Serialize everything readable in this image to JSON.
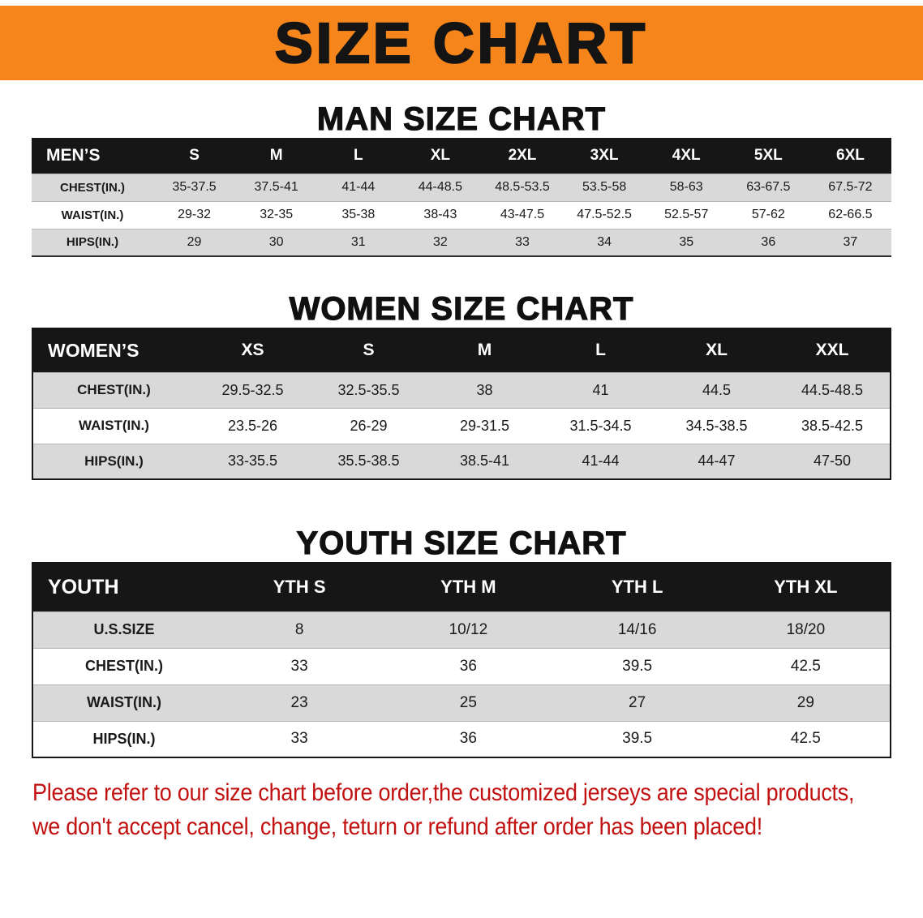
{
  "banner": {
    "title": "SIZE CHART"
  },
  "colors": {
    "banner_bg": "#f6861c",
    "title_text": "#141414",
    "header_row_bg": "#161616",
    "header_row_text": "#ffffff",
    "row_alt_bg": "#d9d9d9",
    "notice_text": "#c21111"
  },
  "sections": {
    "men": {
      "heading": "MAN SIZE CHART",
      "table": {
        "header": [
          "MEN’S",
          "S",
          "M",
          "L",
          "XL",
          "2XL",
          "3XL",
          "4XL",
          "5XL",
          "6XL"
        ],
        "rows": [
          {
            "label": "CHEST(IN.)",
            "values": [
              "35-37.5",
              "37.5-41",
              "41-44",
              "44-48.5",
              "48.5-53.5",
              "53.5-58",
              "58-63",
              "63-67.5",
              "67.5-72"
            ]
          },
          {
            "label": "WAIST(IN.)",
            "values": [
              "29-32",
              "32-35",
              "35-38",
              "38-43",
              "43-47.5",
              "47.5-52.5",
              "52.5-57",
              "57-62",
              "62-66.5"
            ]
          },
          {
            "label": "HIPS(IN.)",
            "values": [
              "29",
              "30",
              "31",
              "32",
              "33",
              "34",
              "35",
              "36",
              "37"
            ]
          }
        ]
      }
    },
    "women": {
      "heading": "WOMEN SIZE CHART",
      "table": {
        "header": [
          "WOMEN’S",
          "XS",
          "S",
          "M",
          "L",
          "XL",
          "XXL"
        ],
        "rows": [
          {
            "label": "CHEST(IN.)",
            "values": [
              "29.5-32.5",
              "32.5-35.5",
              "38",
              "41",
              "44.5",
              "44.5-48.5"
            ]
          },
          {
            "label": "WAIST(IN.)",
            "values": [
              "23.5-26",
              "26-29",
              "29-31.5",
              "31.5-34.5",
              "34.5-38.5",
              "38.5-42.5"
            ]
          },
          {
            "label": "HIPS(IN.)",
            "values": [
              "33-35.5",
              "35.5-38.5",
              "38.5-41",
              "41-44",
              "44-47",
              "47-50"
            ]
          }
        ]
      }
    },
    "youth": {
      "heading": "YOUTH SIZE CHART",
      "table": {
        "header": [
          "YOUTH",
          "YTH S",
          "YTH M",
          "YTH L",
          "YTH XL"
        ],
        "rows": [
          {
            "label": "U.S.SIZE",
            "values": [
              "8",
              "10/12",
              "14/16",
              "18/20"
            ]
          },
          {
            "label": "CHEST(IN.)",
            "values": [
              "33",
              "36",
              "39.5",
              "42.5"
            ]
          },
          {
            "label": "WAIST(IN.)",
            "values": [
              "23",
              "25",
              "27",
              "29"
            ]
          },
          {
            "label": "HIPS(IN.)",
            "values": [
              "33",
              "36",
              "39.5",
              "42.5"
            ]
          }
        ]
      }
    }
  },
  "footer": {
    "line1": "Please refer to our size chart before order,the customized jerseys are special products,",
    "line2": "we don't accept cancel, change, teturn or refund after order has been placed!"
  }
}
